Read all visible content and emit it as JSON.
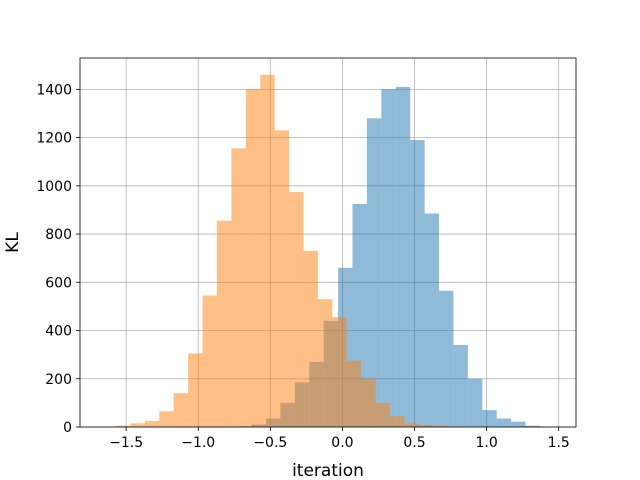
{
  "chart_data": {
    "type": "bar",
    "title": "",
    "xlabel": "iteration",
    "ylabel": "KL",
    "xlim": [
      -1.82,
      1.62
    ],
    "ylim": [
      0,
      1530
    ],
    "grid": true,
    "xticks": [
      -1.5,
      -1.0,
      -0.5,
      0.0,
      0.5,
      1.0,
      1.5
    ],
    "xtick_labels": [
      "−1.5",
      "−1.0",
      "−0.5",
      "0.0",
      "0.5",
      "1.0",
      "1.5"
    ],
    "yticks": [
      0,
      200,
      400,
      600,
      800,
      1000,
      1200,
      1400
    ],
    "ytick_labels": [
      "0",
      "200",
      "400",
      "600",
      "800",
      "1000",
      "1200",
      "1400"
    ],
    "series": [
      {
        "color": "#1f77b4",
        "alpha": 0.5,
        "bin_width": 0.1,
        "bin_starts": [
          -0.73,
          -0.63,
          -0.53,
          -0.43,
          -0.33,
          -0.23,
          -0.13,
          -0.03,
          0.07,
          0.17,
          0.27,
          0.37,
          0.47,
          0.57,
          0.67,
          0.77,
          0.87,
          0.97,
          1.07,
          1.17,
          1.27,
          1.37
        ],
        "values": [
          3,
          10,
          35,
          100,
          185,
          270,
          440,
          660,
          925,
          1280,
          1400,
          1410,
          1190,
          885,
          565,
          340,
          200,
          70,
          35,
          22,
          5,
          2
        ]
      },
      {
        "color": "#ff7f0e",
        "alpha": 0.5,
        "bin_width": 0.1,
        "bin_starts": [
          -1.67,
          -1.57,
          -1.47,
          -1.37,
          -1.27,
          -1.17,
          -1.07,
          -0.97,
          -0.87,
          -0.77,
          -0.67,
          -0.57,
          -0.47,
          -0.37,
          -0.27,
          -0.17,
          -0.07,
          0.03,
          0.13,
          0.23,
          0.33,
          0.43,
          0.53,
          0.63,
          0.73
        ],
        "values": [
          2,
          5,
          15,
          25,
          65,
          140,
          305,
          545,
          855,
          1155,
          1400,
          1460,
          1230,
          975,
          730,
          530,
          455,
          275,
          200,
          100,
          45,
          15,
          8,
          5,
          2
        ]
      }
    ]
  }
}
